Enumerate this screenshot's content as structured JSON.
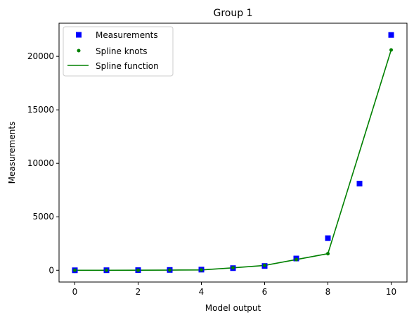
{
  "chart_data": {
    "type": "line",
    "title": "Group 1",
    "xlabel": "Model output",
    "ylabel": "Measurements",
    "xlim": [
      -0.5,
      10.5
    ],
    "ylim": [
      -1100,
      23100
    ],
    "xticks": [
      0,
      2,
      4,
      6,
      8,
      10
    ],
    "yticks": [
      0,
      5000,
      10000,
      15000,
      20000
    ],
    "grid": false,
    "legend_position": "top-left",
    "series": [
      {
        "name": "Measurements",
        "kind": "scatter",
        "marker": "square",
        "color": "#0000ff",
        "x": [
          0,
          1,
          2,
          3,
          4,
          5,
          6,
          7,
          8,
          9,
          10
        ],
        "y": [
          0,
          5,
          12,
          30,
          60,
          200,
          400,
          1100,
          3000,
          8100,
          22000
        ]
      },
      {
        "name": "Spline knots",
        "kind": "scatter",
        "marker": "dot",
        "color": "#008000",
        "x": [
          0,
          1,
          2,
          3,
          4,
          5,
          6,
          7,
          8,
          10
        ],
        "y": [
          0,
          0,
          5,
          15,
          30,
          230,
          450,
          1000,
          1550,
          20600
        ]
      },
      {
        "name": "Spline function",
        "kind": "line",
        "color": "#008000",
        "x": [
          0,
          1,
          2,
          3,
          4,
          5,
          6,
          7,
          8,
          10
        ],
        "y": [
          0,
          0,
          5,
          15,
          30,
          230,
          450,
          1000,
          1550,
          20600
        ]
      }
    ]
  }
}
